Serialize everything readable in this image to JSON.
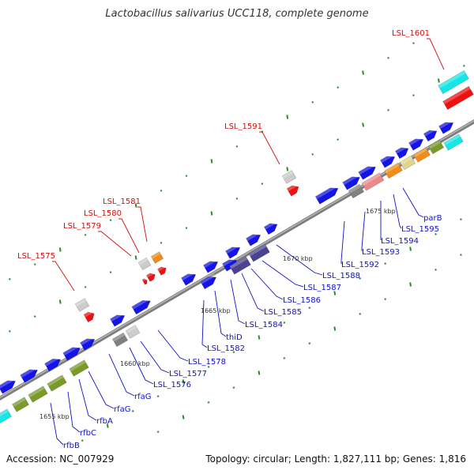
{
  "title": "Lactobacillus salivarius UCC118, complete genome",
  "accession": "Accession: NC_007929",
  "topology": "Topology: circular; Length: 1,827,111 bp; Genes: 1,816",
  "colors": {
    "blue": "#1414e6",
    "cyan": "#17e6e6",
    "red": "#ee1111",
    "olive": "#7a9a2a",
    "gray": "#808080",
    "lightgray": "#cccccc",
    "orange": "#f08c1a",
    "pink": "#e88a8a",
    "khaki": "#e0d68a",
    "purple": "#4b4290",
    "backbone": "#8a8a8a",
    "dots": "#2a8a2a",
    "label_blue": "#1010c8",
    "label_red": "#d01010"
  },
  "scale_labels": [
    "1655 kbp",
    "1660 kbp",
    "1665 kbp",
    "1670 kbp",
    "1675 kbp"
  ],
  "blue_labels": [
    "rfbB",
    "rfbC",
    "rfbA",
    "rfaG",
    "rfaG",
    "LSL_1576",
    "LSL_1577",
    "LSL_1578",
    "LSL_1582",
    "thiD",
    "LSL_1584",
    "LSL_1585",
    "LSL_1586",
    "LSL_1587",
    "LSL_1588",
    "LSL_1592",
    "LSL_1593",
    "LSL_1594",
    "LSL_1595",
    "parB"
  ],
  "red_labels": [
    "LSL_1575",
    "LSL_1579",
    "LSL_1580",
    "LSL_1581",
    "LSL_1591",
    "LSL_1601"
  ]
}
